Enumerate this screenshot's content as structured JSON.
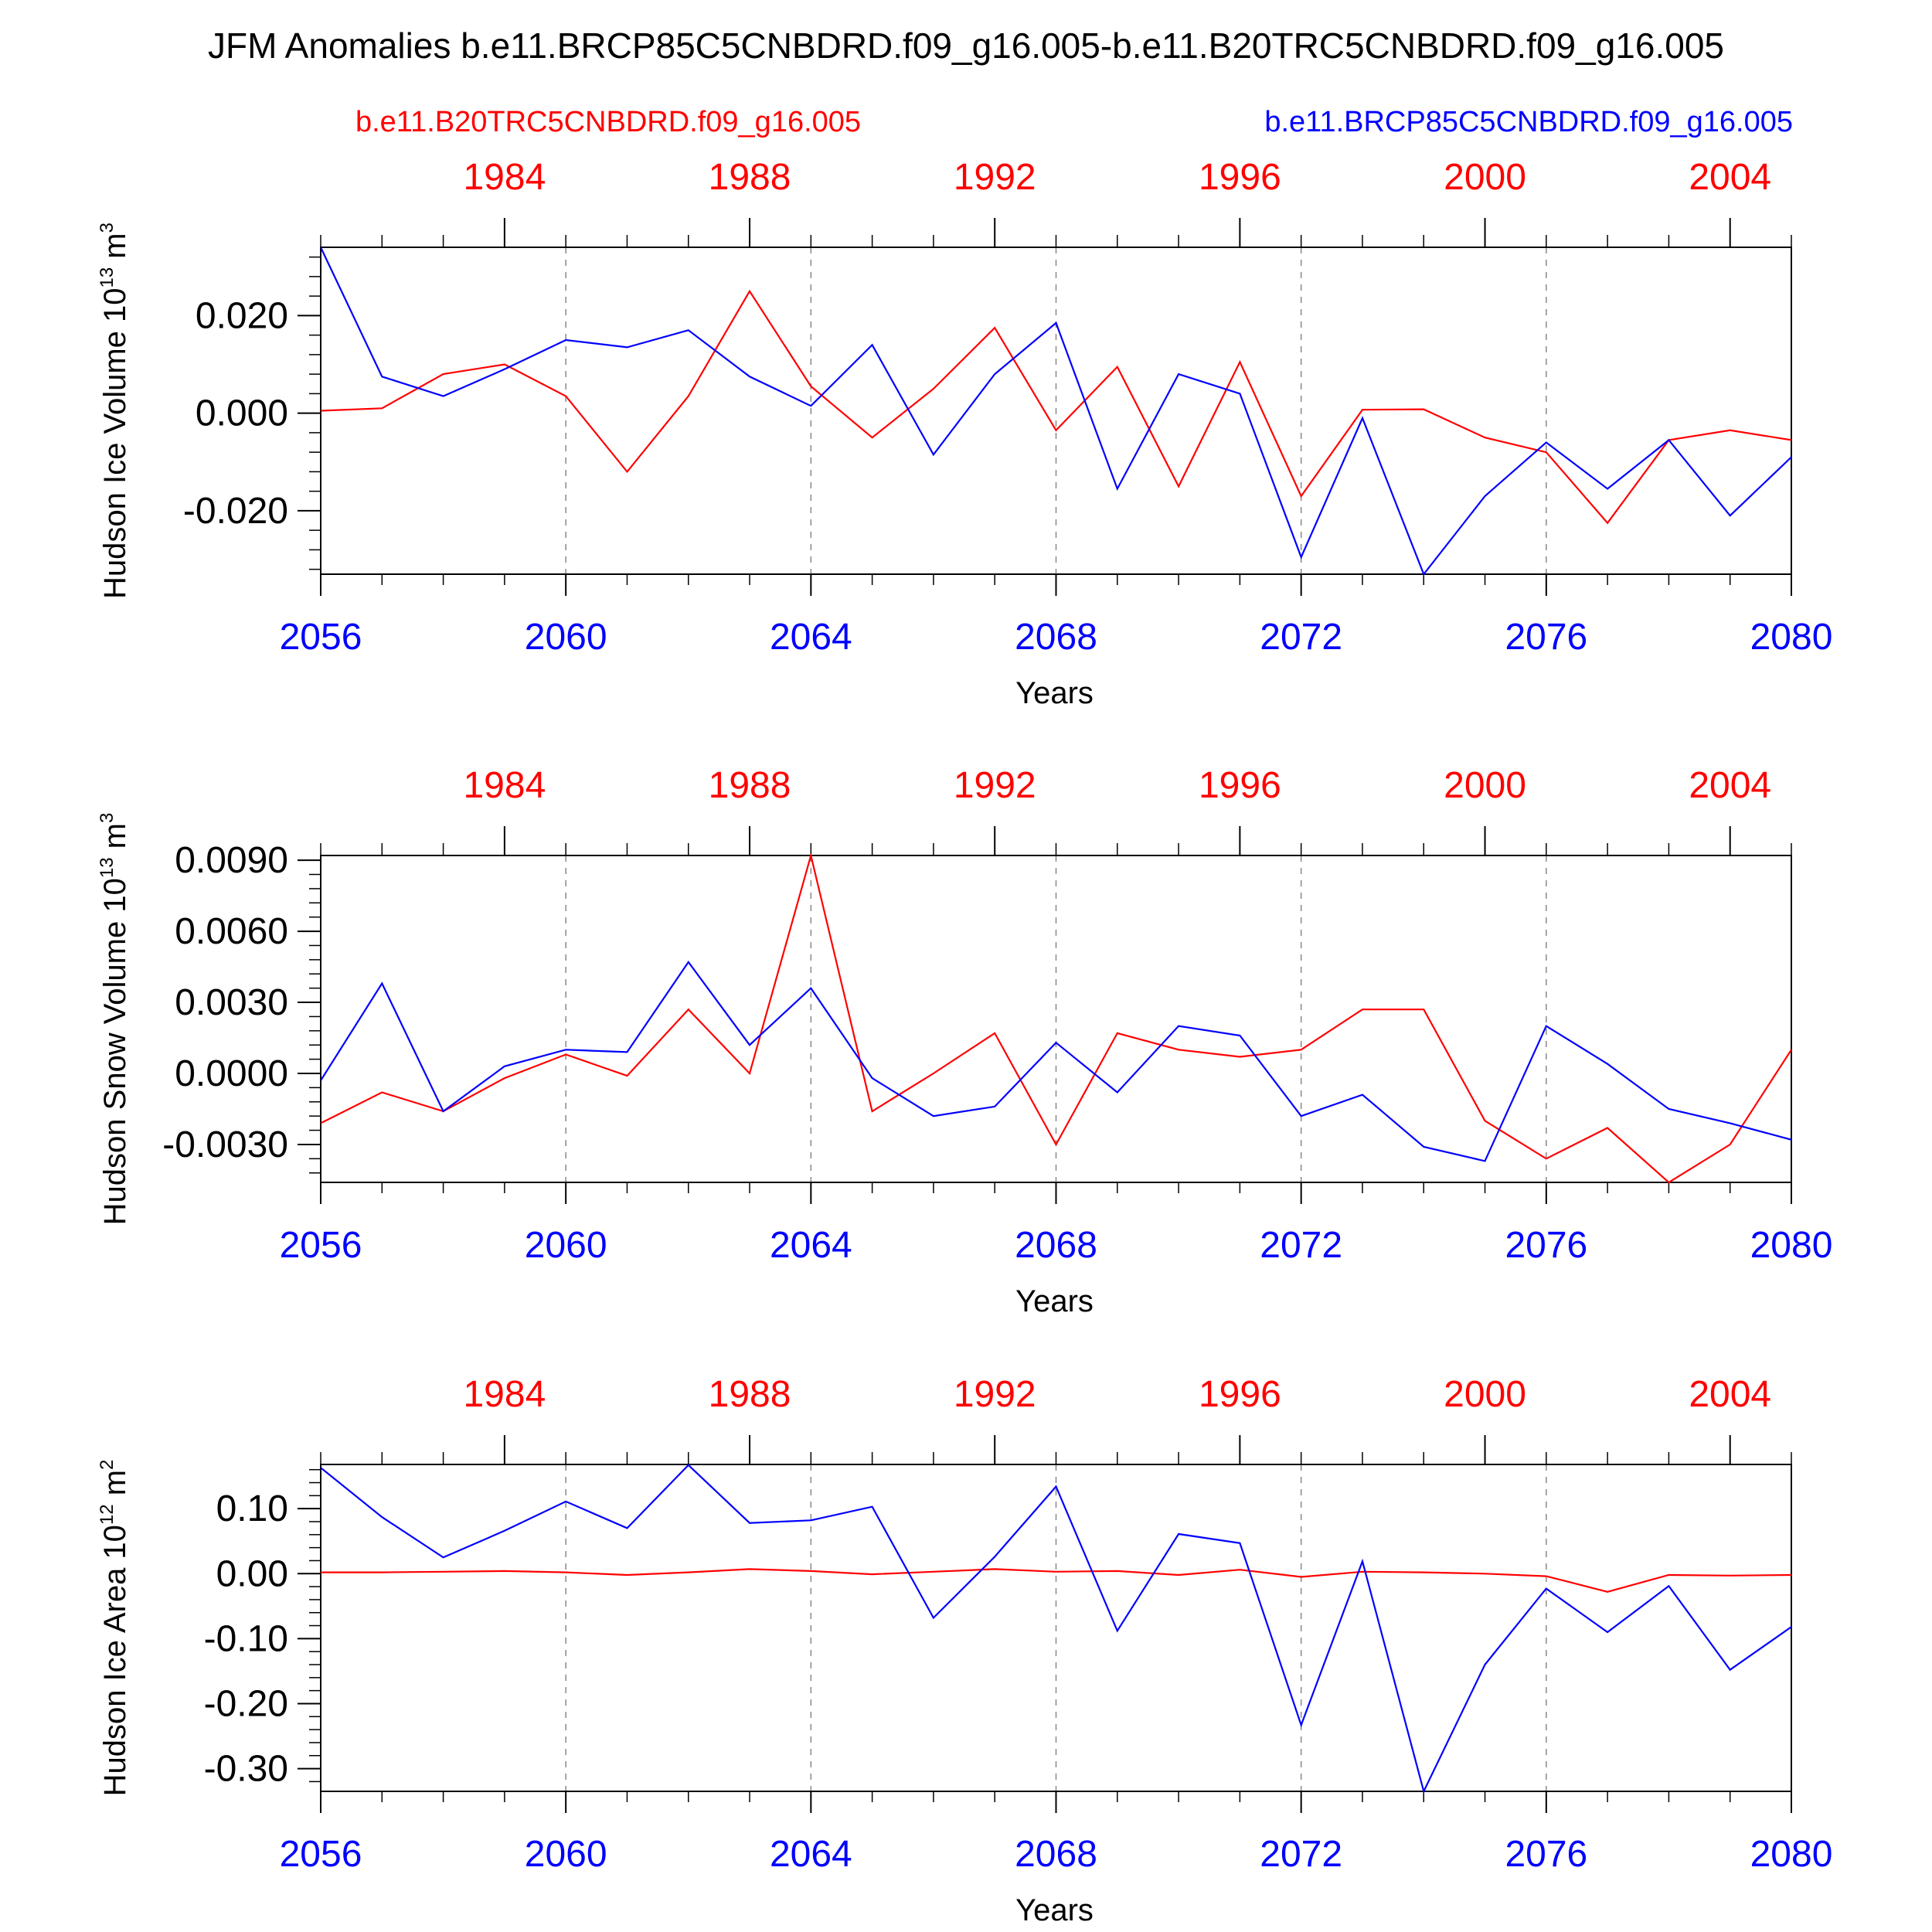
{
  "title": "JFM Anomalies b.e11.BRCP85C5CNBDRD.f09_g16.005-b.e11.B20TRC5CNBDRD.f09_g16.005",
  "colors": {
    "red": "#ff0000",
    "blue": "#0000ff",
    "grid": "#888888",
    "axis": "#000000"
  },
  "legend": {
    "red_label": "b.e11.B20TRC5CNBDRD.f09_g16.005",
    "blue_label": "b.e11.BRCP85C5CNBDRD.f09_g16.005"
  },
  "chart_data": [
    {
      "type": "line",
      "ylabel_main": "Hudson Ice Volume 10",
      "ylabel_exp": "13",
      "ylabel_unit": " m",
      "ylabel_unit_exp": "3",
      "xlabel": "Years",
      "xlim": [
        2056,
        2080
      ],
      "ylim": [
        -0.033,
        0.034
      ],
      "yticks": [
        -0.02,
        0.0,
        0.02
      ],
      "ytick_labels": [
        "-0.020",
        "0.000",
        "0.020"
      ],
      "yminor": 0.004,
      "xticks": [
        2056,
        2060,
        2064,
        2068,
        2072,
        2076,
        2080
      ],
      "top_ticks": [
        1984,
        1988,
        1992,
        1996,
        2000,
        2004
      ],
      "top_offset": 75,
      "x": [
        2056,
        2057,
        2058,
        2059,
        2060,
        2061,
        2062,
        2063,
        2064,
        2065,
        2066,
        2067,
        2068,
        2069,
        2070,
        2071,
        2072,
        2073,
        2074,
        2075,
        2076,
        2077,
        2078,
        2079,
        2080
      ],
      "series": [
        {
          "name": "b.e11.B20TRC5CNBDRD.f09_g16.005",
          "color": "red",
          "values": [
            0.0005,
            0.001,
            0.008,
            0.01,
            0.0035,
            -0.012,
            0.0035,
            0.025,
            0.0055,
            -0.005,
            0.005,
            0.0175,
            -0.0035,
            0.0095,
            -0.015,
            0.0105,
            -0.017,
            0.0007,
            0.0008,
            -0.005,
            -0.008,
            -0.0225,
            -0.0055,
            -0.0035,
            -0.0055
          ]
        },
        {
          "name": "b.e11.BRCP85C5CNBDRD.f09_g16.005",
          "color": "blue",
          "values": [
            0.034,
            0.0075,
            0.0035,
            0.009,
            0.015,
            0.0135,
            0.017,
            0.0075,
            0.0015,
            0.014,
            -0.0085,
            0.008,
            0.0185,
            -0.0155,
            0.008,
            0.004,
            -0.0295,
            -0.001,
            -0.033,
            -0.017,
            -0.006,
            -0.0155,
            -0.0055,
            -0.021,
            -0.009
          ]
        }
      ]
    },
    {
      "type": "line",
      "ylabel_main": "Hudson Snow Volume 10",
      "ylabel_exp": "13",
      "ylabel_unit": " m",
      "ylabel_unit_exp": "3",
      "xlabel": "Years",
      "xlim": [
        2056,
        2080
      ],
      "ylim": [
        -0.0046,
        0.0092
      ],
      "yticks": [
        -0.003,
        0.0,
        0.003,
        0.006,
        0.009
      ],
      "ytick_labels": [
        "-0.0030",
        "0.0000",
        "0.0030",
        "0.0060",
        "0.0090"
      ],
      "yminor": 0.0006,
      "xticks": [
        2056,
        2060,
        2064,
        2068,
        2072,
        2076,
        2080
      ],
      "top_ticks": [
        1984,
        1988,
        1992,
        1996,
        2000,
        2004
      ],
      "top_offset": 75,
      "x": [
        2056,
        2057,
        2058,
        2059,
        2060,
        2061,
        2062,
        2063,
        2064,
        2065,
        2066,
        2067,
        2068,
        2069,
        2070,
        2071,
        2072,
        2073,
        2074,
        2075,
        2076,
        2077,
        2078,
        2079,
        2080
      ],
      "series": [
        {
          "name": "b.e11.B20TRC5CNBDRD.f09_g16.005",
          "color": "red",
          "values": [
            -0.0021,
            -0.0008,
            -0.0016,
            -0.0002,
            0.0008,
            -0.0001,
            0.0027,
            0.0,
            0.0092,
            -0.0016,
            0.0,
            0.0017,
            -0.003,
            0.0017,
            0.001,
            0.0007,
            0.001,
            0.0027,
            0.0027,
            -0.002,
            -0.0036,
            -0.0023,
            -0.0046,
            -0.003,
            0.001
          ]
        },
        {
          "name": "b.e11.BRCP85C5CNBDRD.f09_g16.005",
          "color": "blue",
          "values": [
            -0.0003,
            0.0038,
            -0.0016,
            0.0003,
            0.001,
            0.0009,
            0.0047,
            0.0012,
            0.0036,
            -0.0002,
            -0.0018,
            -0.0014,
            0.0013,
            -0.0008,
            0.002,
            0.0016,
            -0.0018,
            -0.0009,
            -0.0031,
            -0.0037,
            0.002,
            0.0004,
            -0.0015,
            -0.0021,
            -0.0028
          ]
        }
      ]
    },
    {
      "type": "line",
      "ylabel_main": "Hudson Ice Area 10",
      "ylabel_exp": "12",
      "ylabel_unit": " m",
      "ylabel_unit_exp": "2",
      "xlabel": "Years",
      "xlim": [
        2056,
        2080
      ],
      "ylim": [
        -0.335,
        0.168
      ],
      "yticks": [
        -0.3,
        -0.2,
        -0.1,
        0.0,
        0.1
      ],
      "ytick_labels": [
        "-0.30",
        "-0.20",
        "-0.10",
        "0.00",
        "0.10"
      ],
      "yminor": 0.02,
      "xticks": [
        2056,
        2060,
        2064,
        2068,
        2072,
        2076,
        2080
      ],
      "top_ticks": [
        1984,
        1988,
        1992,
        1996,
        2000,
        2004
      ],
      "top_offset": 75,
      "x": [
        2056,
        2057,
        2058,
        2059,
        2060,
        2061,
        2062,
        2063,
        2064,
        2065,
        2066,
        2067,
        2068,
        2069,
        2070,
        2071,
        2072,
        2073,
        2074,
        2075,
        2076,
        2077,
        2078,
        2079,
        2080
      ],
      "series": [
        {
          "name": "b.e11.B20TRC5CNBDRD.f09_g16.005",
          "color": "red",
          "values": [
            0.002,
            0.002,
            0.003,
            0.004,
            0.002,
            -0.002,
            0.002,
            0.007,
            0.004,
            -0.001,
            0.003,
            0.007,
            0.003,
            0.004,
            -0.002,
            0.006,
            -0.005,
            0.003,
            0.002,
            0.0,
            -0.004,
            -0.028,
            -0.002,
            -0.003,
            -0.002
          ]
        },
        {
          "name": "b.e11.BRCP85C5CNBDRD.f09_g16.005",
          "color": "blue",
          "values": [
            0.163,
            0.087,
            0.025,
            0.066,
            0.111,
            0.07,
            0.167,
            0.078,
            0.082,
            0.103,
            -0.068,
            0.026,
            0.134,
            -0.088,
            0.061,
            0.047,
            -0.233,
            0.019,
            -0.335,
            -0.14,
            -0.023,
            -0.09,
            -0.019,
            -0.148,
            -0.082
          ]
        }
      ]
    }
  ]
}
